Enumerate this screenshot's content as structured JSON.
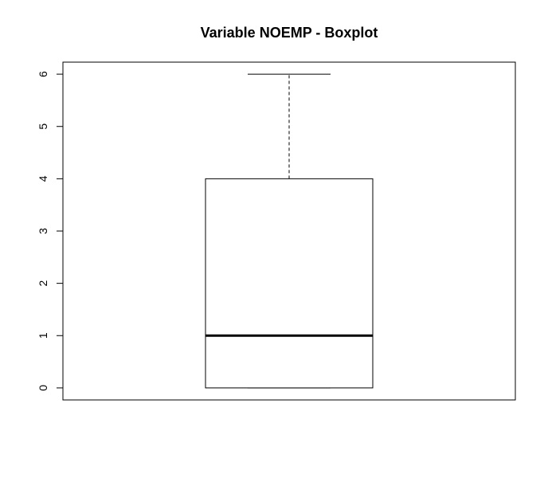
{
  "chart_data": {
    "type": "boxplot",
    "title": "Variable NOEMP - Boxplot",
    "xlabel": "",
    "ylabel": "",
    "ylim": [
      -0.23,
      6.23
    ],
    "yticks": [
      0,
      1,
      2,
      3,
      4,
      5,
      6
    ],
    "ytick_labels": [
      "0",
      "1",
      "2",
      "3",
      "4",
      "5",
      "6"
    ],
    "grid": false,
    "legend": "none",
    "box": {
      "min": 0,
      "q1": 0,
      "median": 1,
      "q3": 4,
      "max": 6,
      "outliers": []
    },
    "colors": {
      "stroke": "#000000",
      "fill": "#ffffff"
    }
  }
}
